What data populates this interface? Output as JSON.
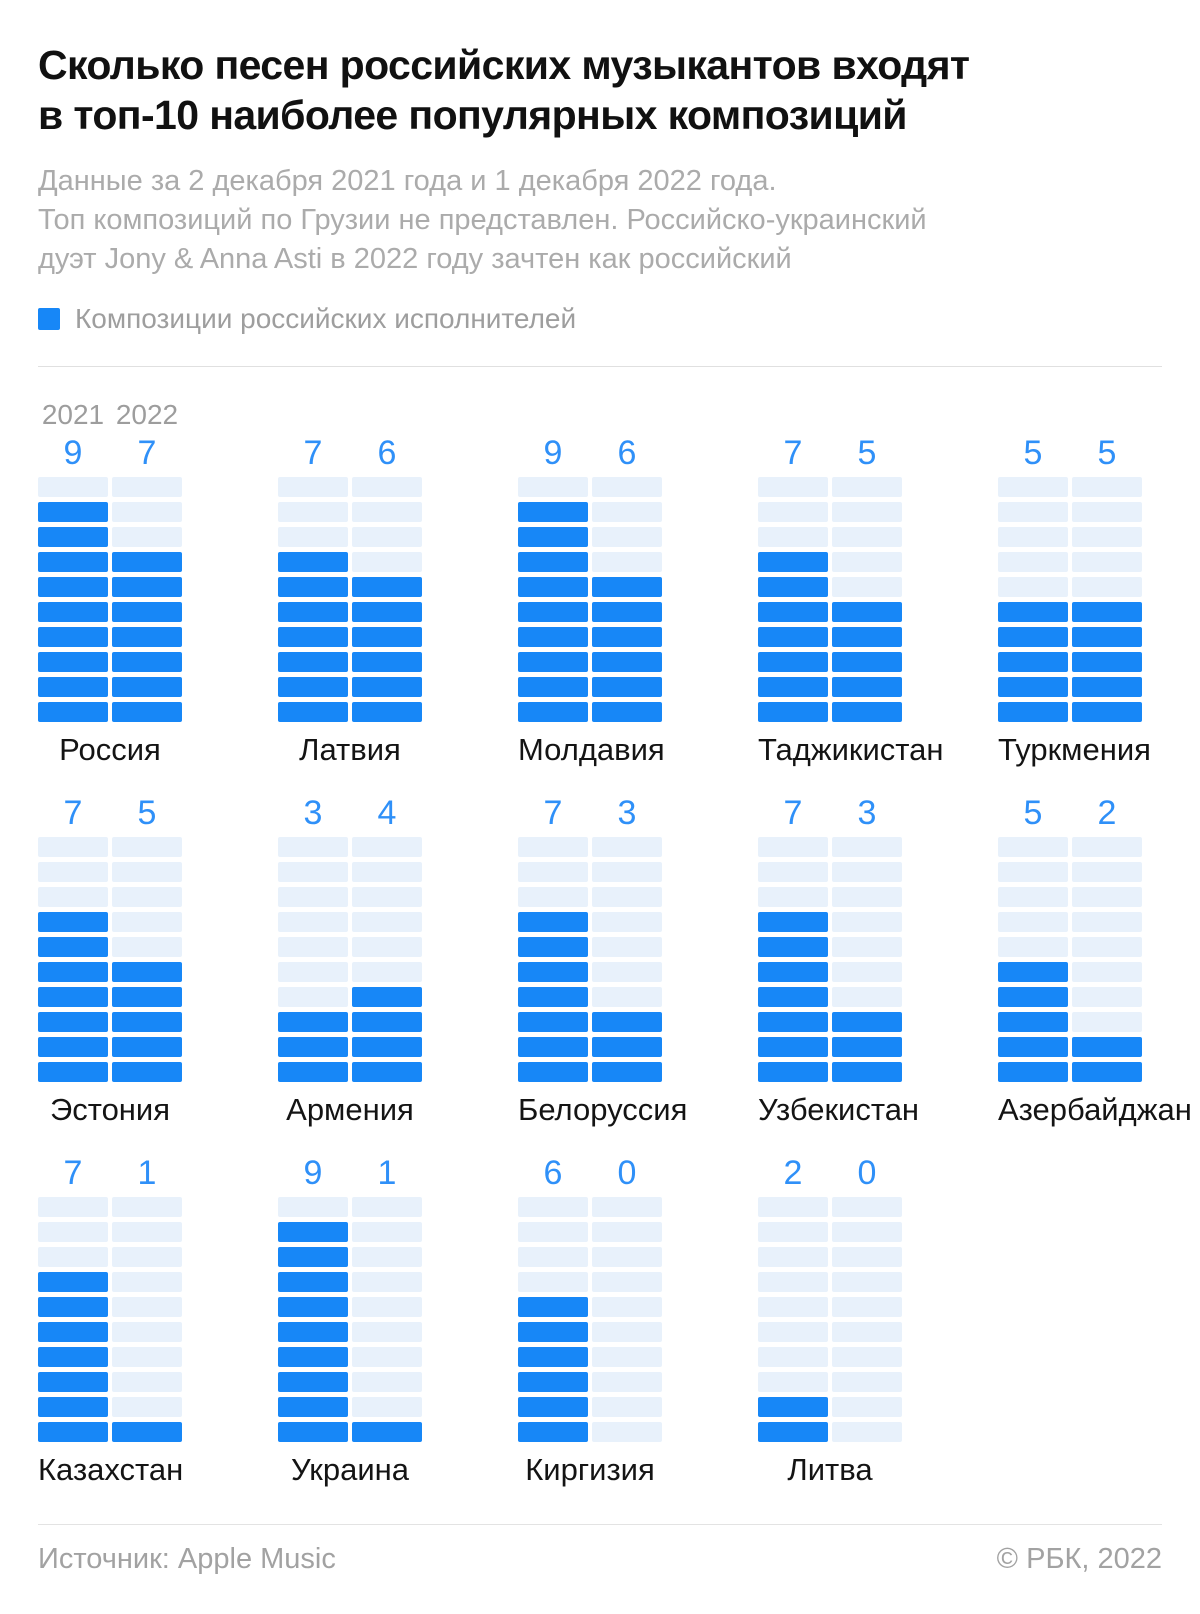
{
  "title": "Сколько песен российских музыкантов входят\nв топ-10 наиболее популярных композиций",
  "subtitle": "Данные за 2 декабря 2021 года и 1 декабря 2022 года.\nТоп композиций по Грузии не представлен. Российско-украинский\nдуэт Jony & Anna Asti в 2022 году зачтен как российский",
  "legend": {
    "label": "Композиции российских исполнителей",
    "color": "#1787F7"
  },
  "chart_data": {
    "type": "heatmap",
    "subtype": "waffle-column-small-multiples",
    "years": [
      "2021",
      "2022"
    ],
    "max_per_column": 10,
    "fill_direction": "bottom-up",
    "countries": [
      {
        "name": "Россия",
        "values": [
          9,
          7
        ]
      },
      {
        "name": "Латвия",
        "values": [
          7,
          6
        ]
      },
      {
        "name": "Молдавия",
        "values": [
          9,
          6
        ]
      },
      {
        "name": "Таджикистан",
        "values": [
          7,
          5
        ]
      },
      {
        "name": "Туркмения",
        "values": [
          5,
          5
        ]
      },
      {
        "name": "Эстония",
        "values": [
          7,
          5
        ]
      },
      {
        "name": "Армения",
        "values": [
          3,
          4
        ]
      },
      {
        "name": "Белоруссия",
        "values": [
          7,
          3
        ]
      },
      {
        "name": "Узбекистан",
        "values": [
          7,
          3
        ]
      },
      {
        "name": "Азербайджан",
        "values": [
          5,
          2
        ]
      },
      {
        "name": "Казахстан",
        "values": [
          7,
          1
        ]
      },
      {
        "name": "Украина",
        "values": [
          9,
          1
        ]
      },
      {
        "name": "Киргизия",
        "values": [
          6,
          0
        ]
      },
      {
        "name": "Литва",
        "values": [
          2,
          0
        ]
      }
    ],
    "colors": {
      "filled": "#1787F7",
      "empty": "#E8F1FB",
      "value_label": "#2F90F8",
      "year_label": "#9D9D9D",
      "country_label": "#141414"
    },
    "legend_position": "top-left",
    "grid": false
  },
  "footer": {
    "source": "Источник: Apple Music",
    "copyright": "© РБК, 2022"
  }
}
